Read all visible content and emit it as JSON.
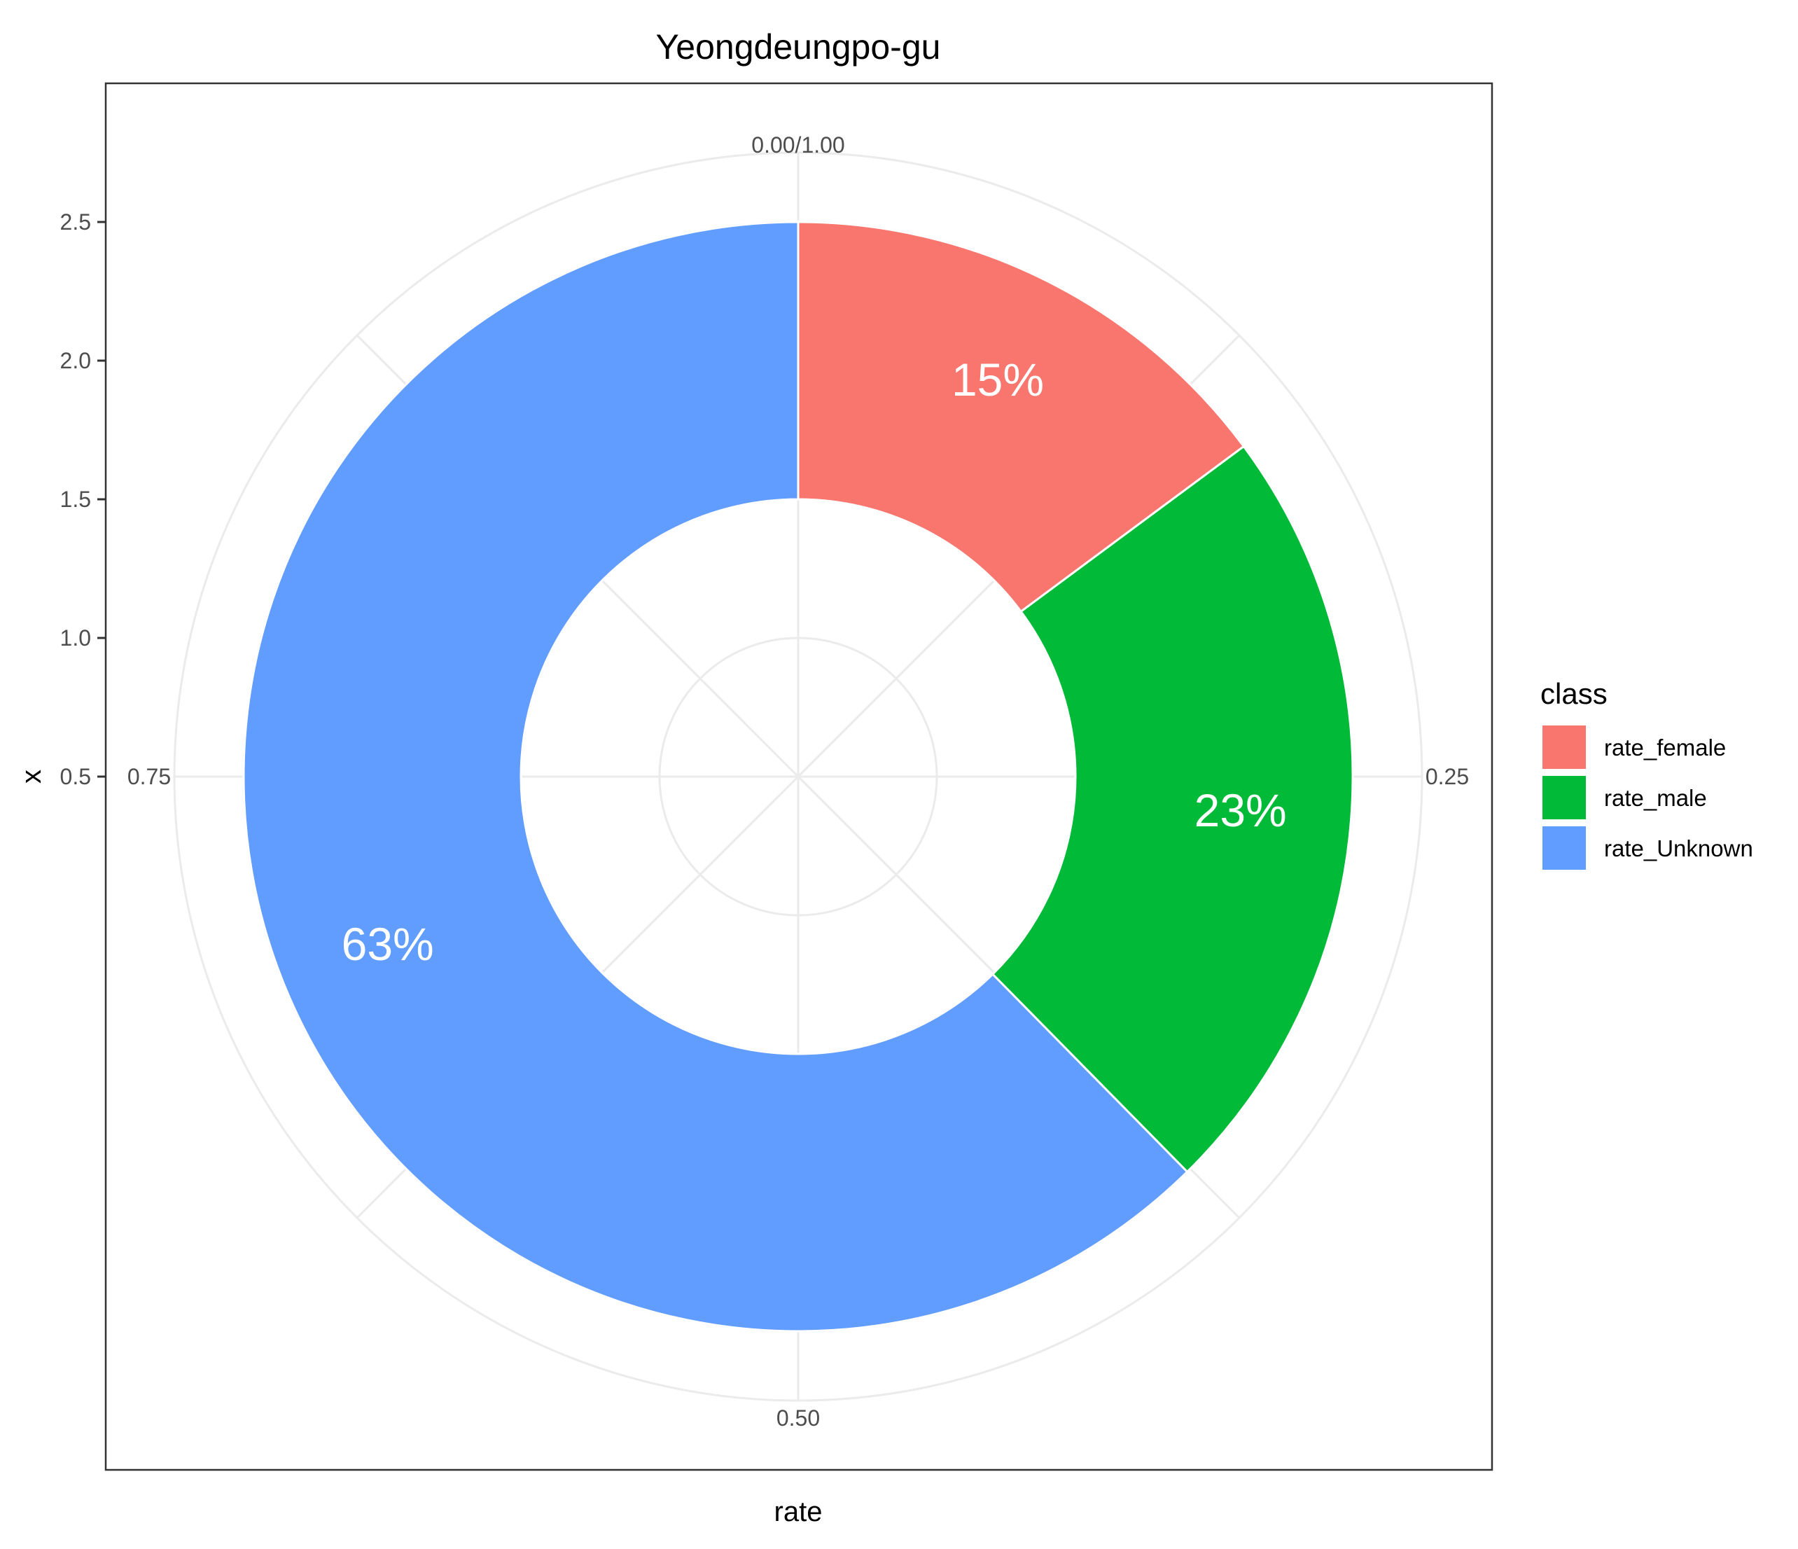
{
  "chart_data": {
    "type": "pie",
    "title": "Yeongdeungpo-gu",
    "xlabel": "rate",
    "ylabel": "x",
    "y_ticks": [
      "0.5",
      "1.0",
      "1.5",
      "2.0",
      "2.5"
    ],
    "angle_ticks": [
      "0.00/1.00",
      "0.25",
      "0.50",
      "0.75"
    ],
    "legend_title": "class",
    "legend_position": "right",
    "grid": true,
    "categories": [
      "rate_female",
      "rate_male",
      "rate_Unknown"
    ],
    "values": [
      0.15,
      0.23,
      0.63
    ],
    "labels": [
      "15%",
      "23%",
      "63%"
    ],
    "colors": [
      "#F8766D",
      "#00BA38",
      "#619CFF"
    ]
  }
}
